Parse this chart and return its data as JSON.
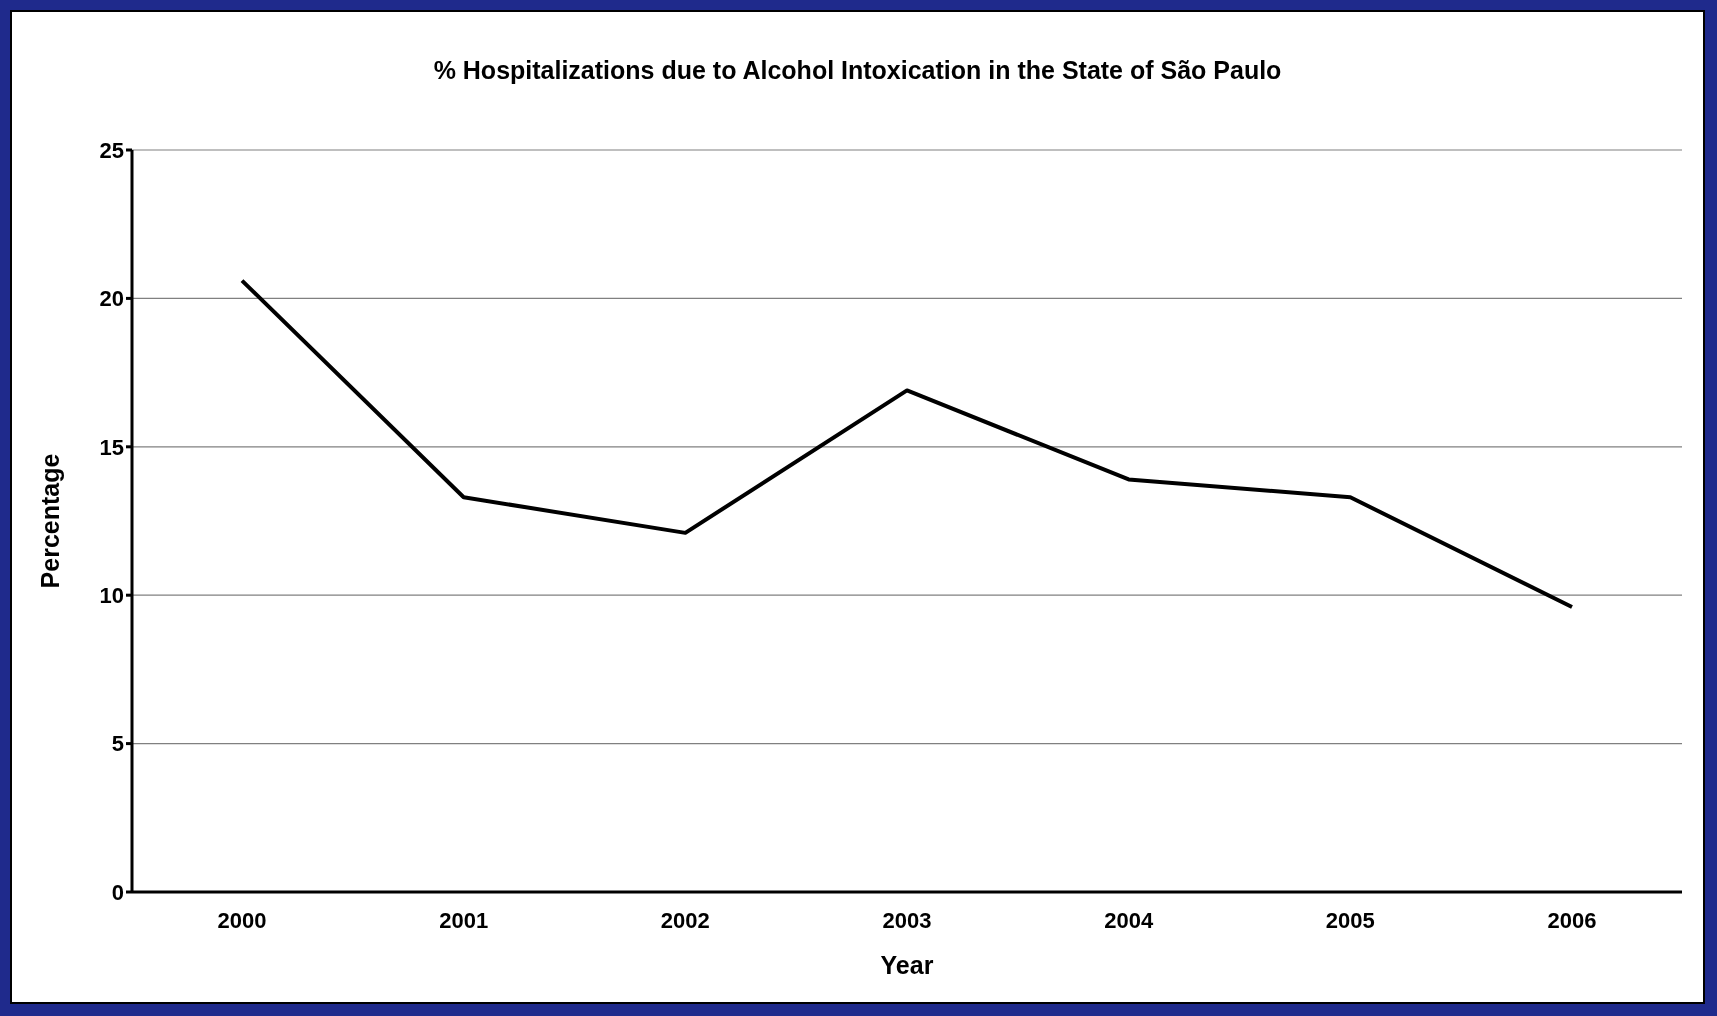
{
  "chart_data": {
    "type": "line",
    "title": "% Hospitalizations due to Alcohol Intoxication in the State of São Paulo",
    "xlabel": "Year",
    "ylabel": "Percentage",
    "categories": [
      "2000",
      "2001",
      "2002",
      "2003",
      "2004",
      "2005",
      "2006"
    ],
    "series": [
      {
        "color": "#000000",
        "values": [
          20.6,
          13.3,
          12.1,
          16.9,
          13.9,
          13.3,
          9.6
        ]
      }
    ],
    "ylim": [
      0,
      25
    ],
    "yticks": [
      0,
      5,
      10,
      15,
      20,
      25
    ],
    "grid": "y",
    "legend": false,
    "marker": "none",
    "line_style": "solid"
  }
}
